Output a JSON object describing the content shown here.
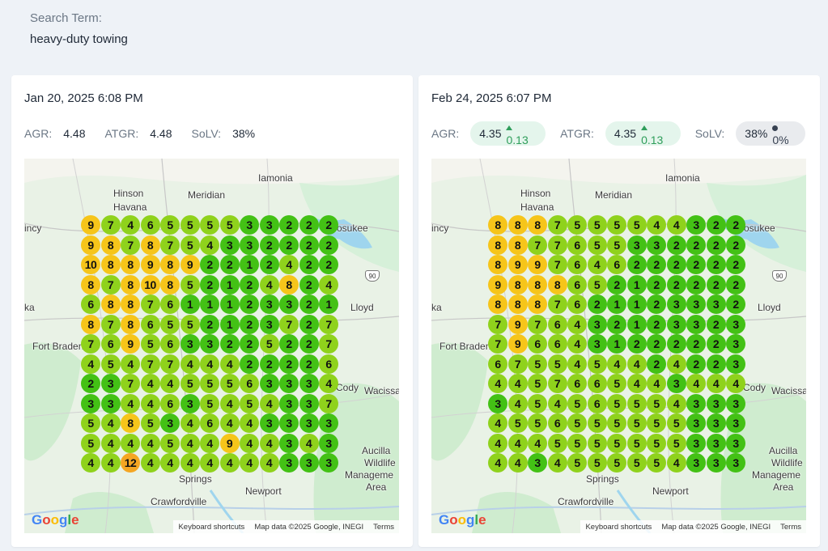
{
  "search": {
    "label": "Search Term:",
    "value": "heavy-duty towing"
  },
  "colors": {
    "green": "#43c115",
    "lime": "#8fd21c",
    "yellow": "#f6c51a",
    "orange": "#f5a623",
    "chip_green_bg": "#e4f5ec",
    "chip_gray_bg": "#e9ebee",
    "delta_up": "#2f9e5b"
  },
  "cards": [
    {
      "date": "Jan 20, 2025 6:08 PM",
      "agr_label": "AGR:",
      "agr": "4.48",
      "atgr_label": "ATGR:",
      "atgr": "4.48",
      "solv_label": "SoLV:",
      "solv": "38%",
      "grid": [
        [
          9,
          7,
          4,
          6,
          5,
          5,
          5,
          5,
          3,
          3,
          2,
          2,
          2
        ],
        [
          9,
          8,
          7,
          8,
          7,
          5,
          4,
          3,
          3,
          2,
          2,
          2,
          2
        ],
        [
          10,
          8,
          8,
          9,
          8,
          9,
          2,
          2,
          1,
          2,
          4,
          2,
          2
        ],
        [
          8,
          7,
          8,
          10,
          8,
          5,
          2,
          1,
          2,
          4,
          8,
          2,
          4
        ],
        [
          6,
          8,
          8,
          7,
          6,
          1,
          1,
          1,
          2,
          3,
          3,
          2,
          1
        ],
        [
          8,
          7,
          8,
          6,
          5,
          5,
          2,
          1,
          2,
          3,
          7,
          2,
          7
        ],
        [
          7,
          6,
          9,
          5,
          6,
          3,
          3,
          2,
          2,
          5,
          2,
          2,
          7
        ],
        [
          4,
          5,
          4,
          7,
          7,
          4,
          4,
          4,
          2,
          2,
          2,
          2,
          6
        ],
        [
          2,
          3,
          7,
          4,
          4,
          5,
          5,
          5,
          6,
          3,
          3,
          3,
          4
        ],
        [
          3,
          3,
          4,
          4,
          6,
          3,
          5,
          4,
          5,
          4,
          3,
          3,
          7
        ],
        [
          5,
          4,
          8,
          5,
          3,
          4,
          6,
          4,
          4,
          3,
          3,
          3,
          3
        ],
        [
          5,
          4,
          4,
          4,
          5,
          4,
          4,
          9,
          4,
          4,
          3,
          4,
          3
        ],
        [
          4,
          4,
          12,
          4,
          4,
          4,
          4,
          4,
          4,
          4,
          3,
          3,
          3
        ]
      ]
    },
    {
      "date": "Feb 24, 2025 6:07 PM",
      "agr_label": "AGR:",
      "agr": "4.35",
      "agr_delta": "0.13",
      "atgr_label": "ATGR:",
      "atgr": "4.35",
      "atgr_delta": "0.13",
      "solv_label": "SoLV:",
      "solv": "38%",
      "solv_delta": "0%",
      "grid": [
        [
          8,
          8,
          8,
          7,
          5,
          5,
          5,
          5,
          4,
          4,
          3,
          2,
          2
        ],
        [
          8,
          8,
          7,
          7,
          6,
          5,
          5,
          3,
          3,
          2,
          2,
          2,
          2
        ],
        [
          8,
          9,
          9,
          7,
          6,
          4,
          6,
          2,
          2,
          2,
          2,
          2,
          2
        ],
        [
          9,
          8,
          8,
          8,
          6,
          5,
          2,
          1,
          2,
          2,
          2,
          2,
          2
        ],
        [
          8,
          8,
          8,
          7,
          6,
          2,
          1,
          1,
          2,
          3,
          3,
          3,
          2
        ],
        [
          7,
          9,
          7,
          6,
          4,
          3,
          2,
          1,
          2,
          3,
          3,
          2,
          3
        ],
        [
          7,
          9,
          6,
          6,
          4,
          3,
          1,
          2,
          2,
          2,
          2,
          2,
          3
        ],
        [
          6,
          7,
          5,
          5,
          4,
          5,
          4,
          4,
          2,
          4,
          2,
          2,
          3
        ],
        [
          4,
          4,
          5,
          7,
          6,
          6,
          5,
          4,
          4,
          3,
          4,
          4,
          4
        ],
        [
          3,
          4,
          5,
          4,
          5,
          6,
          5,
          5,
          5,
          4,
          3,
          3,
          3
        ],
        [
          4,
          5,
          5,
          6,
          5,
          5,
          5,
          5,
          5,
          5,
          3,
          3,
          3
        ],
        [
          4,
          4,
          4,
          5,
          5,
          5,
          5,
          5,
          5,
          5,
          3,
          3,
          3
        ],
        [
          4,
          4,
          3,
          4,
          5,
          5,
          5,
          5,
          5,
          4,
          3,
          3,
          3
        ]
      ]
    }
  ],
  "map": {
    "places": [
      "Iamonia",
      "Hinson",
      "Havana",
      "Meridian",
      "incy",
      "ccosukee",
      "ka",
      "Lloyd",
      "Fort Braden",
      "Wacissa",
      "Aucilla",
      "Wildlife",
      "Manageme",
      "Area",
      "Springs",
      "Newport",
      "Crawfordville",
      "Cody"
    ],
    "highway": "90",
    "google": "Google",
    "attrib": {
      "shortcuts": "Keyboard shortcuts",
      "data": "Map data ©2025 Google, INEGI",
      "terms": "Terms"
    }
  }
}
